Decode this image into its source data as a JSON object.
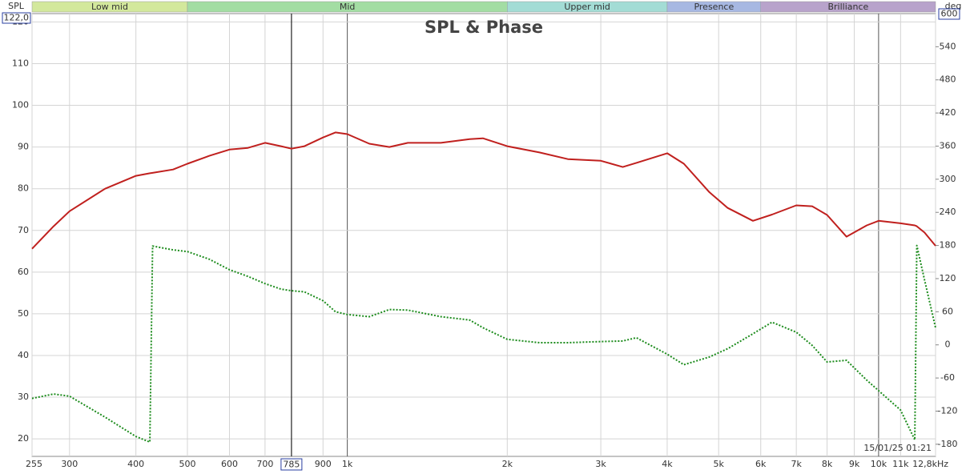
{
  "chart_data": {
    "type": "line",
    "title": "SPL & Phase",
    "y_label": "SPL",
    "y2_label": "deg",
    "timestamp": "15/01/25 01:21",
    "log_x": true,
    "grid": true,
    "xlim": [
      255,
      12800
    ],
    "ylim": [
      15.8,
      122
    ],
    "y2lim": [
      -202,
      600
    ],
    "xticks": [
      255,
      300,
      400,
      500,
      600,
      700,
      900,
      {
        "value": 1000,
        "label": "1k"
      },
      {
        "value": 2000,
        "label": "2k"
      },
      {
        "value": 3000,
        "label": "3k"
      },
      {
        "value": 4000,
        "label": "4k"
      },
      {
        "value": 5000,
        "label": "5k"
      },
      {
        "value": 6000,
        "label": "6k"
      },
      {
        "value": 7000,
        "label": "7k"
      },
      {
        "value": 8000,
        "label": "8k"
      },
      {
        "value": 9000,
        "label": "9k"
      },
      {
        "value": 10000,
        "label": "10k"
      },
      {
        "value": 11000,
        "label": "11k"
      },
      {
        "value": 12800,
        "label": "12,8kHz"
      }
    ],
    "yticks": [
      20,
      30,
      40,
      50,
      60,
      70,
      80,
      90,
      100,
      110,
      120,
      {
        "value": 122,
        "label": "122,0"
      }
    ],
    "y2ticks": [
      -180,
      -120,
      -60,
      0,
      60,
      120,
      180,
      240,
      300,
      360,
      420,
      480,
      540,
      600
    ],
    "cursor": 785,
    "bands": [
      {
        "name": "Low mid",
        "from": 255,
        "to": 500,
        "color": "#d3e89c"
      },
      {
        "name": "Mid",
        "from": 500,
        "to": 2000,
        "color": "#a3dda3"
      },
      {
        "name": "Upper mid",
        "from": 2000,
        "to": 4000,
        "color": "#a3dcd5"
      },
      {
        "name": "Presence",
        "from": 4000,
        "to": 6000,
        "color": "#a7b8e2"
      },
      {
        "name": "Brilliance",
        "from": 6000,
        "to": 12800,
        "color": "#b8a3cb"
      }
    ],
    "x": [
      255,
      280,
      300,
      350,
      400,
      425,
      430,
      470,
      500,
      550,
      600,
      650,
      700,
      750,
      785,
      830,
      900,
      950,
      1000,
      1100,
      1200,
      1300,
      1500,
      1700,
      1800,
      2000,
      2300,
      2600,
      3000,
      3300,
      3500,
      4000,
      4300,
      4800,
      5200,
      5800,
      6300,
      7000,
      7500,
      8000,
      8700,
      9500,
      10000,
      11000,
      11700,
      11800,
      12200,
      12800
    ],
    "series": [
      {
        "color": "#c0201e",
        "values": [
          65.6,
          71.0,
          74.6,
          80,
          83.1,
          83.7,
          83.8,
          84.6,
          86,
          87.9,
          89.4,
          89.8,
          91.0,
          90.2,
          89.6,
          90.2,
          92.3,
          93.5,
          93.1,
          90.8,
          90,
          91,
          91,
          91.9,
          92.1,
          90.2,
          88.7,
          87.1,
          86.7,
          85.2,
          86.2,
          88.5,
          86,
          79.2,
          75.4,
          72.3,
          73.8,
          76,
          75.8,
          73.7,
          68.5,
          71.2,
          72.3,
          71.7,
          71.2,
          71,
          69.5,
          66.3
        ]
      },
      {
        "color": "#1d8c1d",
        "axis": "y2",
        "values": [
          -97,
          -89,
          -93,
          -131,
          -166,
          -176,
          179,
          172,
          169,
          155,
          136,
          124,
          111,
          101,
          98,
          96,
          80,
          60,
          55,
          51,
          64,
          63,
          51,
          45,
          31,
          10,
          4,
          4,
          6,
          7,
          13,
          -17,
          -36,
          -22,
          -7,
          20,
          41,
          23,
          -1,
          -31,
          -28,
          -64,
          -83,
          -118,
          -172,
          180,
          118,
          31
        ]
      }
    ]
  }
}
